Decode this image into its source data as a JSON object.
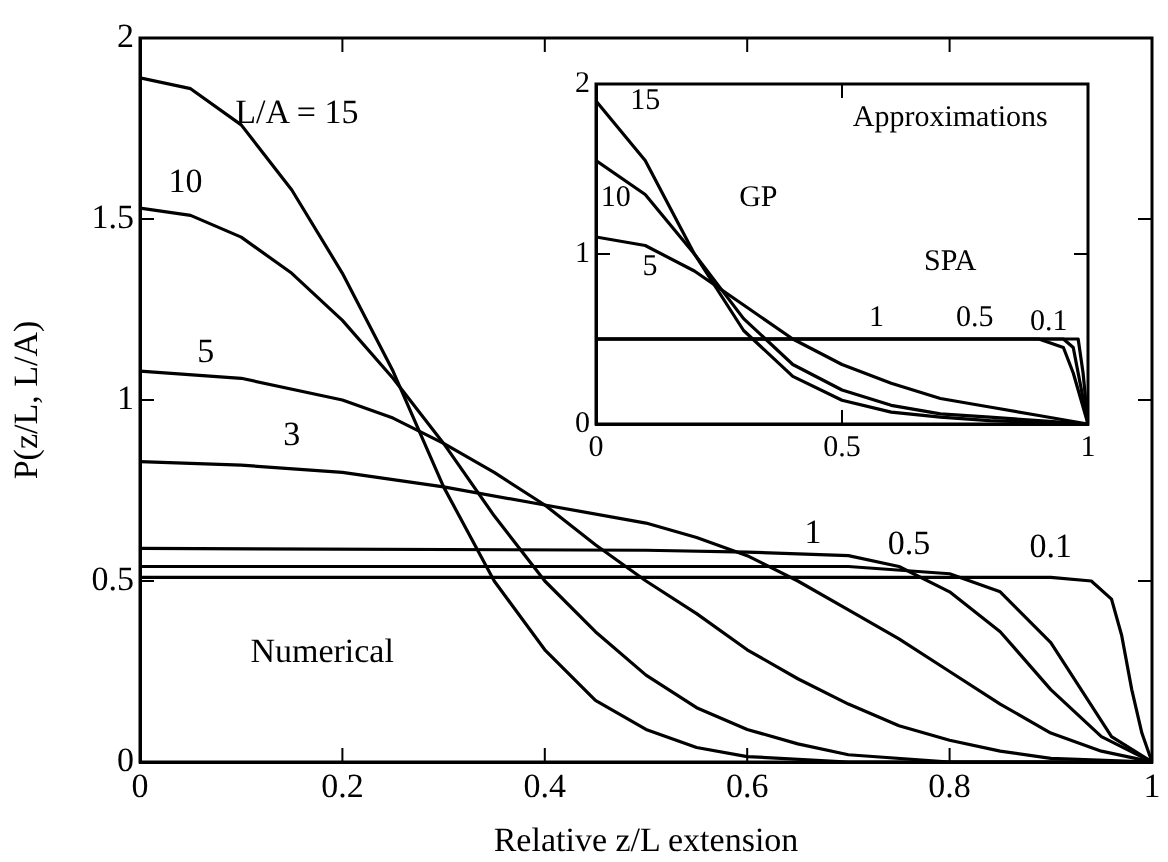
{
  "chart_data": [
    {
      "type": "line",
      "xlabel": "Relative z/L extension",
      "ylabel": "P(z/L, L/A)",
      "xlim": [
        0,
        1
      ],
      "ylim": [
        0,
        2
      ],
      "xticks": [
        0,
        0.2,
        0.4,
        0.6,
        0.8,
        1
      ],
      "yticks": [
        0,
        0.5,
        1,
        1.5,
        2
      ],
      "grid": false,
      "legend": false,
      "line_style": "solid",
      "marker": "none",
      "annotations": [
        "Numerical"
      ],
      "series": [
        {
          "name": "L/A = 15",
          "color": "#000000",
          "x": [
            0,
            0.05,
            0.1,
            0.15,
            0.2,
            0.25,
            0.3,
            0.35,
            0.4,
            0.45,
            0.5,
            0.55,
            0.6,
            0.7,
            1
          ],
          "values": [
            1.89,
            1.86,
            1.76,
            1.58,
            1.35,
            1.08,
            0.76,
            0.5,
            0.31,
            0.17,
            0.09,
            0.04,
            0.015,
            0,
            0
          ]
        },
        {
          "name": "10",
          "color": "#000000",
          "x": [
            0,
            0.05,
            0.1,
            0.15,
            0.2,
            0.25,
            0.3,
            0.35,
            0.4,
            0.45,
            0.5,
            0.55,
            0.6,
            0.65,
            0.7,
            0.8,
            1
          ],
          "values": [
            1.53,
            1.51,
            1.45,
            1.35,
            1.22,
            1.06,
            0.88,
            0.68,
            0.5,
            0.36,
            0.24,
            0.15,
            0.09,
            0.05,
            0.02,
            0,
            0
          ]
        },
        {
          "name": "5",
          "color": "#000000",
          "x": [
            0,
            0.1,
            0.2,
            0.25,
            0.3,
            0.35,
            0.4,
            0.45,
            0.5,
            0.55,
            0.6,
            0.65,
            0.7,
            0.75,
            0.8,
            0.85,
            0.9,
            1
          ],
          "values": [
            1.08,
            1.06,
            1,
            0.95,
            0.88,
            0.8,
            0.71,
            0.6,
            0.5,
            0.41,
            0.31,
            0.23,
            0.16,
            0.1,
            0.06,
            0.03,
            0.01,
            0
          ]
        },
        {
          "name": "3",
          "color": "#000000",
          "x": [
            0,
            0.1,
            0.2,
            0.3,
            0.4,
            0.5,
            0.55,
            0.6,
            0.65,
            0.7,
            0.75,
            0.8,
            0.85,
            0.9,
            0.95,
            1
          ],
          "values": [
            0.83,
            0.82,
            0.8,
            0.76,
            0.71,
            0.66,
            0.62,
            0.57,
            0.5,
            0.42,
            0.34,
            0.25,
            0.16,
            0.08,
            0.03,
            0
          ]
        },
        {
          "name": "1",
          "color": "#000000",
          "x": [
            0,
            0.5,
            0.6,
            0.7,
            0.75,
            0.8,
            0.85,
            0.9,
            0.95,
            1
          ],
          "values": [
            0.59,
            0.585,
            0.58,
            0.57,
            0.54,
            0.47,
            0.36,
            0.2,
            0.07,
            0
          ]
        },
        {
          "name": "0.5",
          "color": "#000000",
          "x": [
            0,
            0.7,
            0.8,
            0.85,
            0.9,
            0.93,
            0.96,
            1
          ],
          "values": [
            0.54,
            0.54,
            0.52,
            0.47,
            0.33,
            0.2,
            0.07,
            0
          ]
        },
        {
          "name": "0.1",
          "color": "#000000",
          "x": [
            0,
            0.9,
            0.94,
            0.96,
            0.97,
            0.98,
            0.99,
            1
          ],
          "values": [
            0.51,
            0.51,
            0.5,
            0.45,
            0.35,
            0.2,
            0.08,
            0
          ]
        }
      ]
    },
    {
      "type": "line",
      "xlim": [
        0,
        1
      ],
      "ylim": [
        0,
        2
      ],
      "xticks": [
        0,
        0.5,
        1
      ],
      "yticks": [
        0,
        1,
        2
      ],
      "grid": false,
      "legend": false,
      "line_style": "solid",
      "marker": "none",
      "annotations": [
        "Approximations",
        "GP",
        "SPA"
      ],
      "series": [
        {
          "name": "15",
          "color": "#000000",
          "x": [
            0,
            0.1,
            0.2,
            0.3,
            0.4,
            0.5,
            0.6,
            0.7,
            0.8,
            0.9,
            1
          ],
          "values": [
            1.9,
            1.55,
            1,
            0.55,
            0.28,
            0.14,
            0.07,
            0.04,
            0.02,
            0.01,
            0
          ]
        },
        {
          "name": "10",
          "color": "#000000",
          "x": [
            0,
            0.1,
            0.2,
            0.3,
            0.4,
            0.5,
            0.6,
            0.7,
            0.8,
            0.9,
            1
          ],
          "values": [
            1.55,
            1.35,
            1,
            0.62,
            0.35,
            0.2,
            0.11,
            0.06,
            0.04,
            0.02,
            0
          ]
        },
        {
          "name": "5",
          "color": "#000000",
          "x": [
            0,
            0.1,
            0.2,
            0.3,
            0.4,
            0.5,
            0.6,
            0.7,
            0.8,
            0.9,
            1
          ],
          "values": [
            1.1,
            1.05,
            0.9,
            0.7,
            0.5,
            0.35,
            0.24,
            0.15,
            0.1,
            0.05,
            0
          ]
        },
        {
          "name": "1",
          "color": "#000000",
          "x": [
            0,
            0.9,
            0.95,
            0.97,
            1
          ],
          "values": [
            0.5,
            0.5,
            0.45,
            0.3,
            0
          ]
        },
        {
          "name": "0.5",
          "color": "#000000",
          "x": [
            0,
            0.95,
            0.97,
            0.98,
            1
          ],
          "values": [
            0.5,
            0.5,
            0.45,
            0.3,
            0
          ]
        },
        {
          "name": "0.1",
          "color": "#000000",
          "x": [
            0,
            0.98,
            0.99,
            1
          ],
          "values": [
            0.5,
            0.5,
            0.3,
            0
          ]
        }
      ]
    }
  ]
}
